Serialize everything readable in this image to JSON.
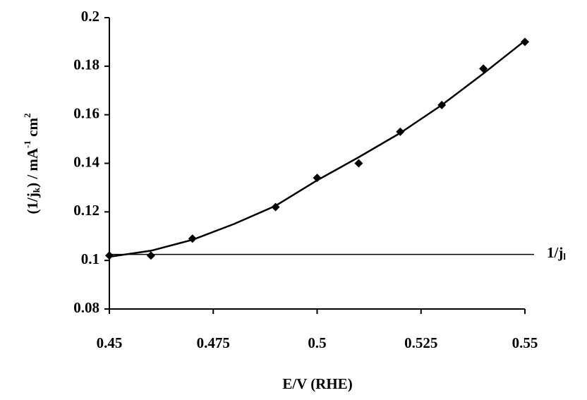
{
  "chart_data": {
    "type": "scatter",
    "x_label": "E/V (RHE)",
    "y_label": [
      {
        "text": "(1/j"
      },
      {
        "text": "k",
        "shift": "sub"
      },
      {
        "text": ") / mA"
      },
      {
        "text": "-1",
        "shift": "sup"
      },
      {
        "text": " cm"
      },
      {
        "text": "2",
        "shift": "sup"
      }
    ],
    "x": [
      0.45,
      0.46,
      0.47,
      0.49,
      0.5,
      0.51,
      0.52,
      0.53,
      0.54,
      0.55
    ],
    "values": [
      0.102,
      0.102,
      0.109,
      0.122,
      0.134,
      0.14,
      0.153,
      0.164,
      0.179,
      0.19
    ],
    "color": "#000000",
    "fit": {
      "x": [
        0.45,
        0.46,
        0.47,
        0.48,
        0.49,
        0.5,
        0.51,
        0.52,
        0.53,
        0.54,
        0.55
      ],
      "values": [
        0.1015,
        0.104,
        0.1085,
        0.115,
        0.1225,
        0.133,
        0.1425,
        0.1525,
        0.164,
        0.177,
        0.1905
      ]
    },
    "reference_line": {
      "value": 0.1025,
      "label": [
        {
          "text": "1/j"
        },
        {
          "text": "l",
          "shift": "sub"
        }
      ]
    },
    "xlim": [
      0.45,
      0.55
    ],
    "xticks": [
      0.45,
      0.475,
      0.5,
      0.525,
      0.55
    ],
    "ylim": [
      0.08,
      0.2
    ],
    "yticks": [
      0.08,
      0.1,
      0.12,
      0.14,
      0.16,
      0.18,
      0.2
    ],
    "grid": false
  }
}
